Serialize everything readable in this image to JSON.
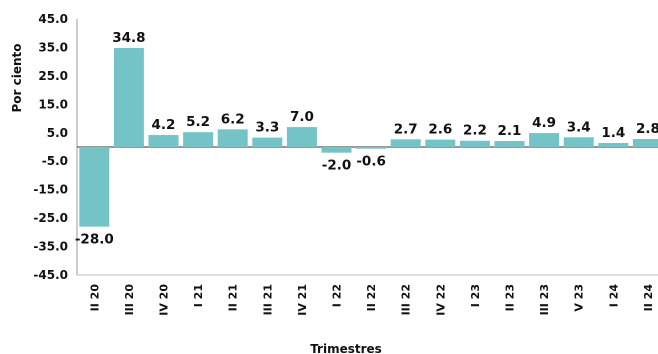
{
  "chart_data": {
    "type": "bar",
    "categories": [
      "II 20",
      "III 20",
      "IV 20",
      "I 21",
      "II 21",
      "III 21",
      "IV 21",
      "I 22",
      "II 22",
      "III 22",
      "IV 22",
      "I 23",
      "II 23",
      "III 23",
      "V 23",
      "I 24",
      "II 24"
    ],
    "values": [
      -28.0,
      34.8,
      4.2,
      5.2,
      6.2,
      3.3,
      7.0,
      -2.0,
      -0.6,
      2.7,
      2.6,
      2.2,
      2.1,
      4.9,
      3.4,
      1.4,
      2.8
    ],
    "data_labels": [
      "-28.0",
      "34.8",
      "4.2",
      "5.2",
      "6.2",
      "3.3",
      "7.0",
      "-2.0",
      "-0.6",
      "2.7",
      "2.6",
      "2.2",
      "2.1",
      "4.9",
      "3.4",
      "1.4",
      "2.8"
    ],
    "title": "",
    "xlabel": "Trimestres",
    "ylabel": "Por ciento",
    "ylim": [
      -45.0,
      45.0
    ],
    "yticks": [
      "45.0",
      "35.0",
      "25.0",
      "15.0",
      "5.0",
      "-5.0",
      "-15.0",
      "-25.0",
      "-35.0",
      "-45.0"
    ],
    "grid": false,
    "bar_color": "#74c3c6"
  }
}
